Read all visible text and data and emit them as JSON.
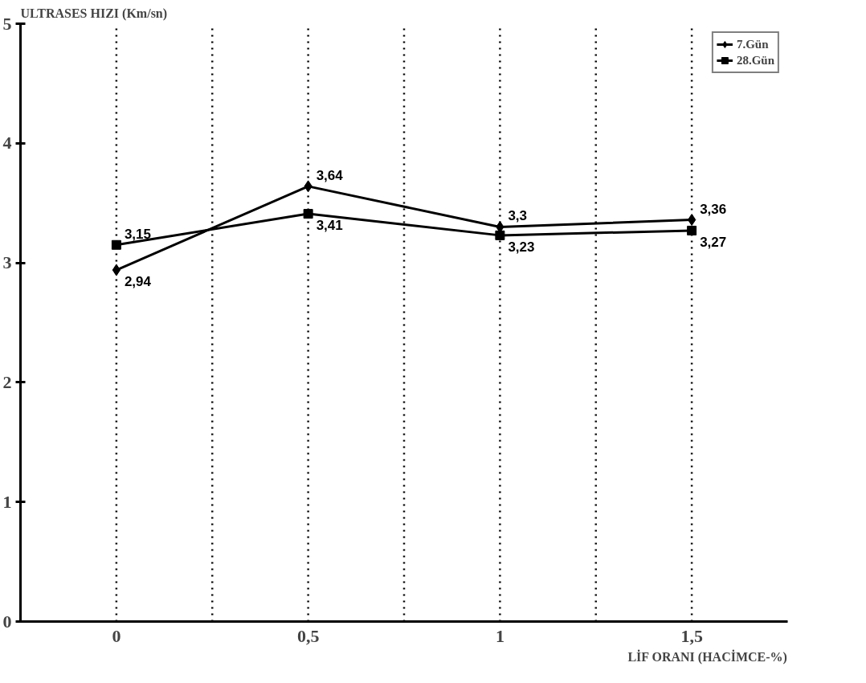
{
  "chart_data": {
    "type": "line",
    "ylabel": "ULTRASES HIZI (Km/sn)",
    "xlabel": "LİF ORANI (HACİMCE-%)",
    "categories": [
      "0",
      "0,5",
      "1",
      "1,5"
    ],
    "series": [
      {
        "name": "7.Gün",
        "color": "#000000",
        "marker": "diamond",
        "values": [
          2.94,
          3.64,
          3.3,
          3.36
        ],
        "value_labels": [
          "2,94",
          "3,64",
          "3,3",
          "3,36"
        ]
      },
      {
        "name": "28.Gün",
        "color": "#000000",
        "marker": "square",
        "values": [
          3.15,
          3.41,
          3.23,
          3.27
        ],
        "value_labels": [
          "3,15",
          "3,41",
          "3,23",
          "3,27"
        ]
      }
    ],
    "ylim": [
      0,
      5
    ],
    "yticks": [
      0,
      1,
      2,
      3,
      4,
      5
    ],
    "grid": "x",
    "legend": "top right",
    "line_style": "solid"
  }
}
